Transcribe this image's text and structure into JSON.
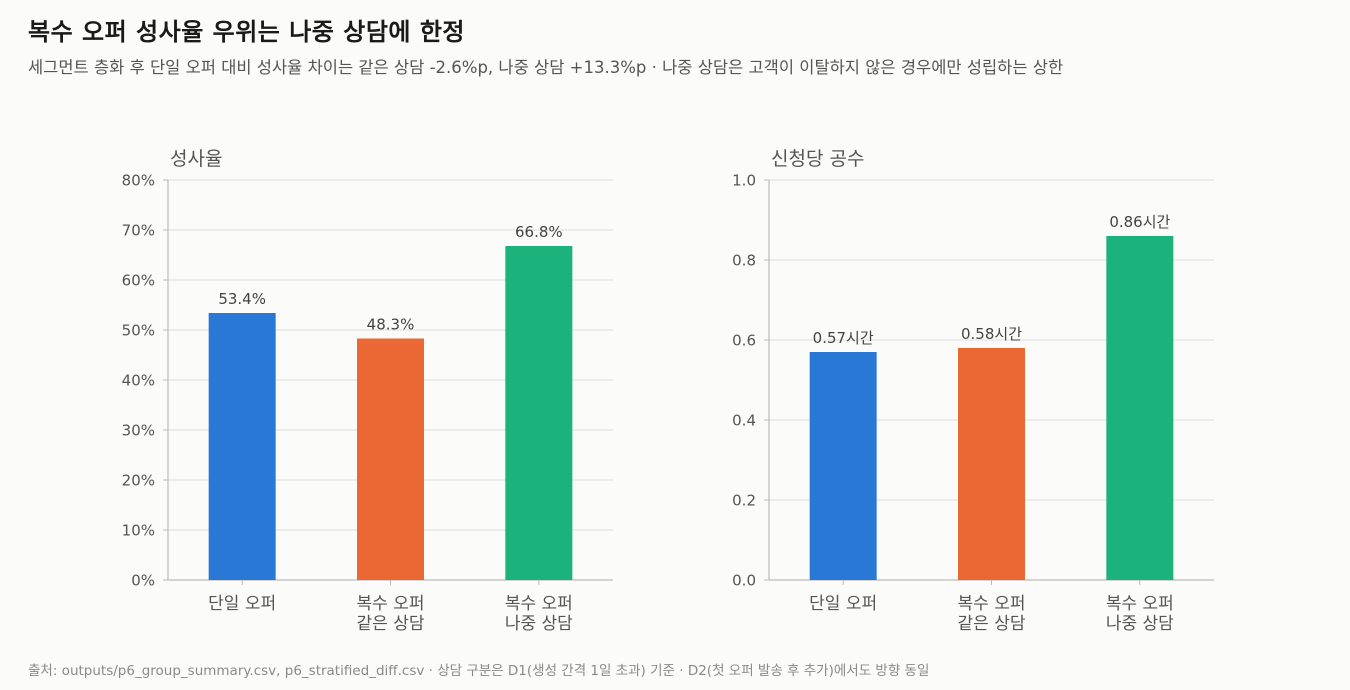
{
  "title": "복수 오퍼 성사율 우위는 나중 상담에 한정",
  "subtitle": "세그먼트 층화 후 단일 오퍼 대비 성사율 차이는 같은 상담 -2.6%p, 나중 상담 +13.3%p · 나중 상담은 고객이 이탈하지 않은 경우에만 성립하는 상한",
  "footer": "출처: outputs/p6_group_summary.csv, p6_stratified_diff.csv · 상담 구분은 D1(생성 간격 1일 초과) 기준 · D2(첫 오퍼 발송 후 추가)에서도 방향 동일",
  "colors": {
    "single": "#2a78d6",
    "same": "#eb6834",
    "later": "#1bb27c"
  },
  "chart_data": [
    {
      "type": "bar",
      "title": "성사율",
      "categories": [
        [
          "단일 오퍼"
        ],
        [
          "복수 오퍼",
          "같은 상담"
        ],
        [
          "복수 오퍼",
          "나중 상담"
        ]
      ],
      "values": [
        53.4,
        48.3,
        66.8
      ],
      "value_labels": [
        "53.4%",
        "48.3%",
        "66.8%"
      ],
      "ylim": [
        0,
        80
      ],
      "yticks": [
        0,
        10,
        20,
        30,
        40,
        50,
        60,
        70,
        80
      ],
      "ytick_labels": [
        "0%",
        "10%",
        "20%",
        "30%",
        "40%",
        "50%",
        "60%",
        "70%",
        "80%"
      ],
      "grid": true
    },
    {
      "type": "bar",
      "title": "신청당 공수",
      "categories": [
        [
          "단일 오퍼"
        ],
        [
          "복수 오퍼",
          "같은 상담"
        ],
        [
          "복수 오퍼",
          "나중 상담"
        ]
      ],
      "values": [
        0.57,
        0.58,
        0.86
      ],
      "value_labels": [
        "0.57시간",
        "0.58시간",
        "0.86시간"
      ],
      "ylim": [
        0,
        1.0
      ],
      "yticks": [
        0,
        0.2,
        0.4,
        0.6,
        0.8,
        1.0
      ],
      "ytick_labels": [
        "0.0",
        "0.2",
        "0.4",
        "0.6",
        "0.8",
        "1.0"
      ],
      "grid": true
    }
  ]
}
